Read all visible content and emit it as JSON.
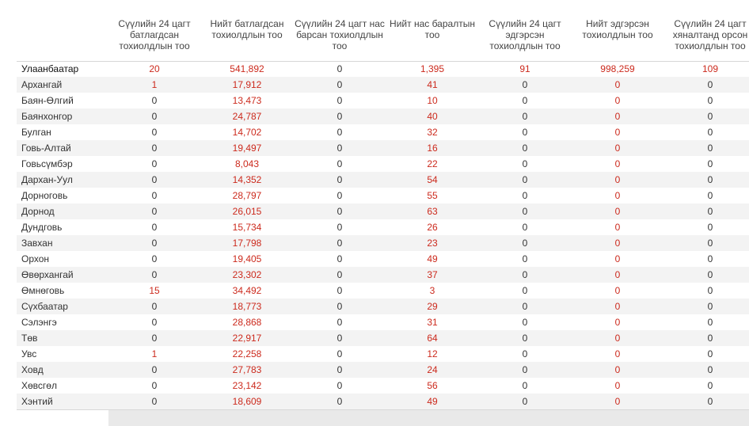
{
  "headers": {
    "new_confirmed_24h": "Сүүлийн 24 цагт батлагдсан тохиолдлын тоо",
    "total_confirmed": "Нийт батлагдсан тохиолдлын тоо",
    "deaths_24h": "Сүүлийн 24 цагт нас барсан тохиолдлын тоо",
    "total_deaths": "Нийт нас баралтын тоо",
    "recovered_24h": "Сүүлийн 24 цагт эдгэрсэн тохиолдлын тоо",
    "total_recovered": "Нийт эдгэрсэн тохиолдлын тоо",
    "monitored_24h": "Сүүлийн 24 цагт хяналтанд орсон тохиолдлын тоо"
  },
  "rows": [
    {
      "name": "Улаанбаатар",
      "c1": "20",
      "c2": "541,892",
      "c3": "0",
      "c4": "1,395",
      "c5": "91",
      "c6": "998,259",
      "c7": "109"
    },
    {
      "name": "Архангай",
      "c1": "1",
      "c2": "17,912",
      "c3": "0",
      "c4": "41",
      "c5": "0",
      "c6": "0",
      "c7": "0"
    },
    {
      "name": "Баян-Өлгий",
      "c1": "0",
      "c2": "13,473",
      "c3": "0",
      "c4": "10",
      "c5": "0",
      "c6": "0",
      "c7": "0"
    },
    {
      "name": "Баянхонгор",
      "c1": "0",
      "c2": "24,787",
      "c3": "0",
      "c4": "40",
      "c5": "0",
      "c6": "0",
      "c7": "0"
    },
    {
      "name": "Булган",
      "c1": "0",
      "c2": "14,702",
      "c3": "0",
      "c4": "32",
      "c5": "0",
      "c6": "0",
      "c7": "0"
    },
    {
      "name": "Говь-Алтай",
      "c1": "0",
      "c2": "19,497",
      "c3": "0",
      "c4": "16",
      "c5": "0",
      "c6": "0",
      "c7": "0"
    },
    {
      "name": "Говьсүмбэр",
      "c1": "0",
      "c2": "8,043",
      "c3": "0",
      "c4": "22",
      "c5": "0",
      "c6": "0",
      "c7": "0"
    },
    {
      "name": "Дархан-Уул",
      "c1": "0",
      "c2": "14,352",
      "c3": "0",
      "c4": "54",
      "c5": "0",
      "c6": "0",
      "c7": "0"
    },
    {
      "name": "Дорноговь",
      "c1": "0",
      "c2": "28,797",
      "c3": "0",
      "c4": "55",
      "c5": "0",
      "c6": "0",
      "c7": "0"
    },
    {
      "name": "Дорнод",
      "c1": "0",
      "c2": "26,015",
      "c3": "0",
      "c4": "63",
      "c5": "0",
      "c6": "0",
      "c7": "0"
    },
    {
      "name": "Дундговь",
      "c1": "0",
      "c2": "15,734",
      "c3": "0",
      "c4": "26",
      "c5": "0",
      "c6": "0",
      "c7": "0"
    },
    {
      "name": "Завхан",
      "c1": "0",
      "c2": "17,798",
      "c3": "0",
      "c4": "23",
      "c5": "0",
      "c6": "0",
      "c7": "0"
    },
    {
      "name": "Орхон",
      "c1": "0",
      "c2": "19,405",
      "c3": "0",
      "c4": "49",
      "c5": "0",
      "c6": "0",
      "c7": "0"
    },
    {
      "name": "Өвөрхангай",
      "c1": "0",
      "c2": "23,302",
      "c3": "0",
      "c4": "37",
      "c5": "0",
      "c6": "0",
      "c7": "0"
    },
    {
      "name": "Өмнөговь",
      "c1": "15",
      "c2": "34,492",
      "c3": "0",
      "c4": "3",
      "c5": "0",
      "c6": "0",
      "c7": "0"
    },
    {
      "name": "Сүхбаатар",
      "c1": "0",
      "c2": "18,773",
      "c3": "0",
      "c4": "29",
      "c5": "0",
      "c6": "0",
      "c7": "0"
    },
    {
      "name": "Сэлэнгэ",
      "c1": "0",
      "c2": "28,868",
      "c3": "0",
      "c4": "31",
      "c5": "0",
      "c6": "0",
      "c7": "0"
    },
    {
      "name": "Төв",
      "c1": "0",
      "c2": "22,917",
      "c3": "0",
      "c4": "64",
      "c5": "0",
      "c6": "0",
      "c7": "0"
    },
    {
      "name": "Увс",
      "c1": "1",
      "c2": "22,258",
      "c3": "0",
      "c4": "12",
      "c5": "0",
      "c6": "0",
      "c7": "0"
    },
    {
      "name": "Ховд",
      "c1": "0",
      "c2": "27,783",
      "c3": "0",
      "c4": "24",
      "c5": "0",
      "c6": "0",
      "c7": "0"
    },
    {
      "name": "Хөвсгөл",
      "c1": "0",
      "c2": "23,142",
      "c3": "0",
      "c4": "56",
      "c5": "0",
      "c6": "0",
      "c7": "0"
    },
    {
      "name": "Хэнтий",
      "c1": "0",
      "c2": "18,609",
      "c3": "0",
      "c4": "49",
      "c5": "0",
      "c6": "0",
      "c7": "0"
    }
  ],
  "colors": {
    "highlight": "#cc2a1d",
    "text": "#333333",
    "stripe": "#f3f3f3"
  }
}
